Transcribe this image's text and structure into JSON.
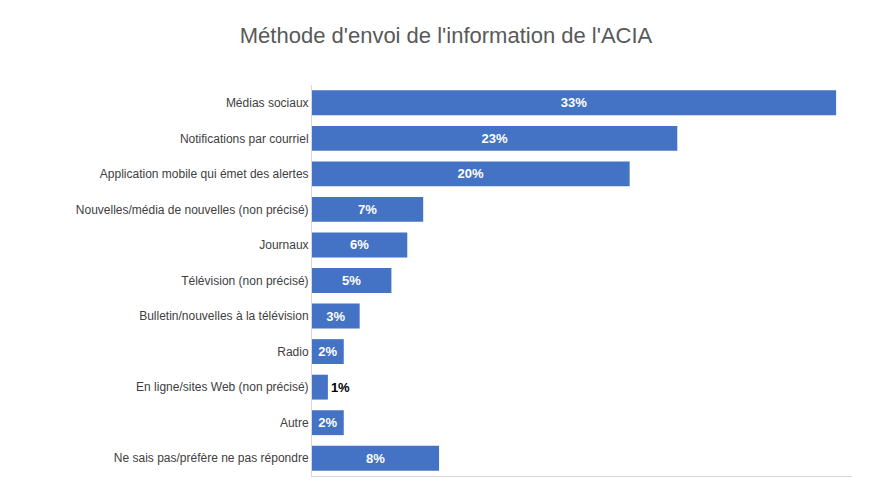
{
  "chart_data": {
    "type": "bar",
    "title": "Méthode d'envoi de l'information de l'ACIA",
    "orientation": "horizontal",
    "categories": [
      "Médias sociaux",
      "Notifications par courriel",
      "Application mobile qui émet des alertes",
      "Nouvelles/média de nouvelles (non précisé)",
      "Journaux",
      "Télévision (non précisé)",
      "Bulletin/nouvelles à la télévision",
      "Radio",
      "En ligne/sites Web (non précisé)",
      "Autre",
      "Ne sais pas/préfère ne pas répondre"
    ],
    "values": [
      33,
      23,
      20,
      7,
      6,
      5,
      3,
      2,
      1,
      2,
      8
    ],
    "value_labels": [
      "33%",
      "23%",
      "20%",
      "7%",
      "6%",
      "5%",
      "3%",
      "2%",
      "1%",
      "2%",
      "8%"
    ],
    "color": "#4472c4",
    "xlim": [
      0,
      34
    ],
    "xticks": [],
    "grid": false,
    "data_labels": true,
    "tick_labels": "y"
  }
}
